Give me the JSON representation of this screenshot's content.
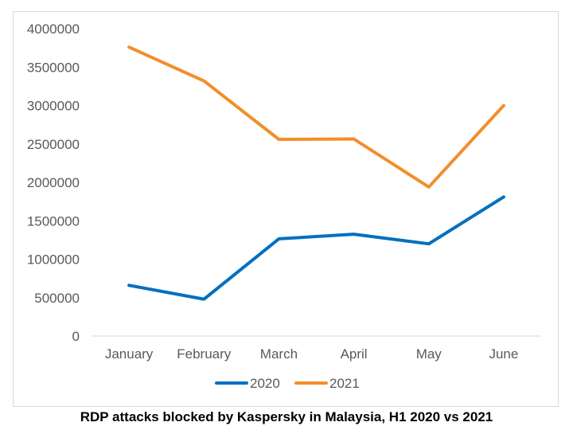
{
  "caption": "RDP attacks blocked by Kaspersky in Malaysia, H1 2020 vs 2021",
  "chart_data": {
    "type": "line",
    "title": "",
    "xlabel": "",
    "ylabel": "",
    "categories": [
      "January",
      "February",
      "March",
      "April",
      "May",
      "June"
    ],
    "ylim": [
      0,
      4000000
    ],
    "yticks": [
      0,
      500000,
      1000000,
      1500000,
      2000000,
      2500000,
      3000000,
      3500000,
      4000000
    ],
    "ytick_labels": [
      "0",
      "500000",
      "1000000",
      "1500000",
      "2000000",
      "2500000",
      "3000000",
      "3500000",
      "4000000"
    ],
    "grid": false,
    "legend_position": "bottom",
    "series": [
      {
        "name": "2020",
        "color": "#0070c0",
        "values": [
          660000,
          480000,
          1265000,
          1325000,
          1200000,
          1810000
        ]
      },
      {
        "name": "2021",
        "color": "#f28e2b",
        "values": [
          3760000,
          3320000,
          2560000,
          2565000,
          1940000,
          3000000
        ]
      }
    ]
  }
}
